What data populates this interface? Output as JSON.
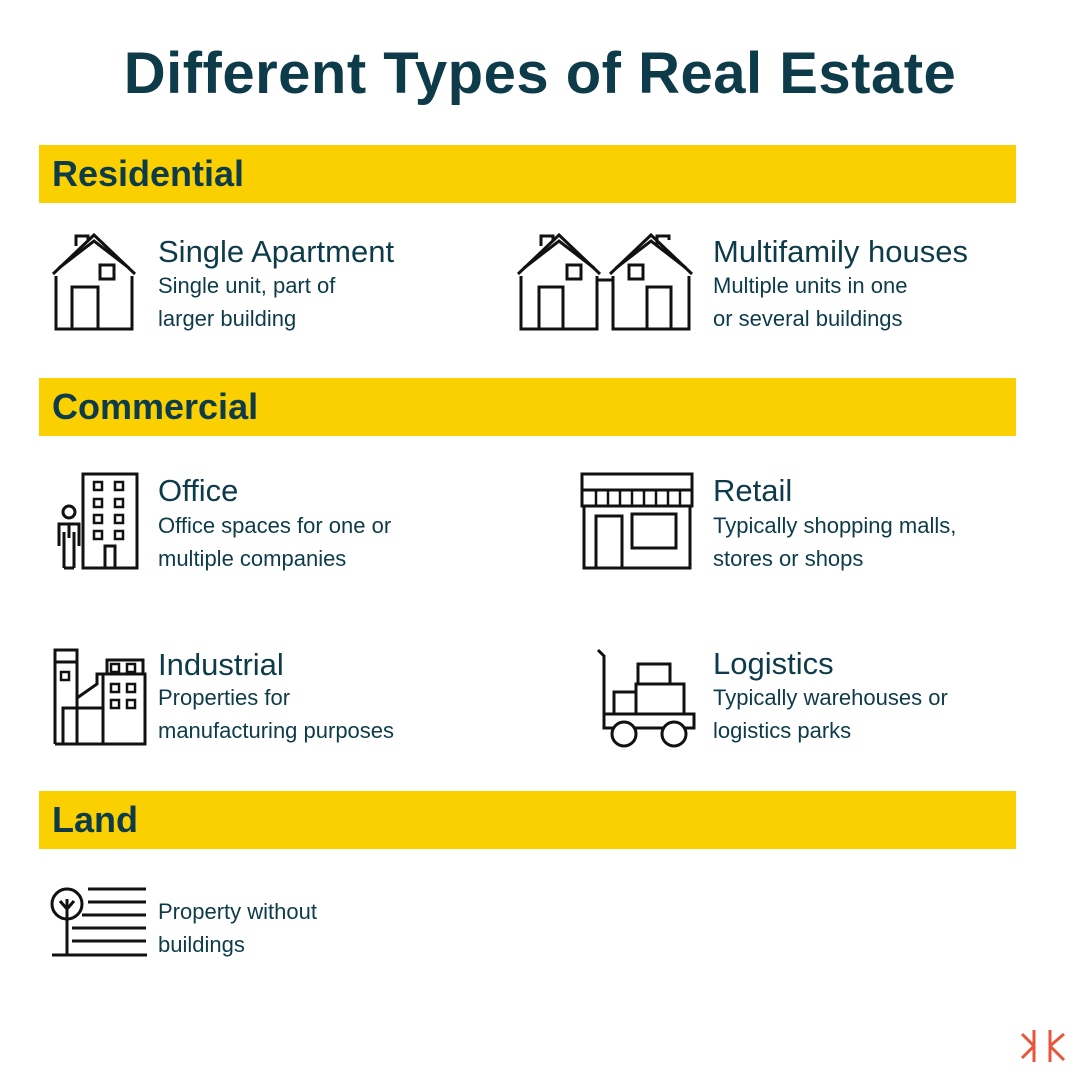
{
  "title": "Different Types of Real Estate",
  "sections": [
    {
      "heading": "Residential",
      "items": [
        {
          "name": "Single Apartment",
          "desc1": "Single unit, part of",
          "desc2": "larger building",
          "icon": "house-icon"
        },
        {
          "name": "Multifamily houses",
          "desc1": "Multiple units in one",
          "desc2": "or several buildings",
          "icon": "two-houses-icon"
        }
      ]
    },
    {
      "heading": "Commercial",
      "items": [
        {
          "name": "Office",
          "desc1": "Office spaces for one or",
          "desc2": "multiple companies",
          "icon": "office-building-icon"
        },
        {
          "name": "Retail",
          "desc1": "Typically shopping malls,",
          "desc2": "stores or shops",
          "icon": "storefront-icon"
        },
        {
          "name": "Industrial",
          "desc1": "Properties for",
          "desc2": "manufacturing purposes",
          "icon": "factory-icon"
        },
        {
          "name": "Logistics",
          "desc1": "Typically warehouses or",
          "desc2": "logistics parks",
          "icon": "cart-boxes-icon"
        }
      ]
    },
    {
      "heading": "Land",
      "items": [
        {
          "name": "",
          "desc1": "Property without",
          "desc2": "buildings",
          "icon": "tree-land-icon"
        }
      ]
    }
  ],
  "colors": {
    "band": "#fbd000",
    "text": "#0d3b4a",
    "logo": "#e8553a"
  },
  "logo_icon": "brand-logo-icon"
}
